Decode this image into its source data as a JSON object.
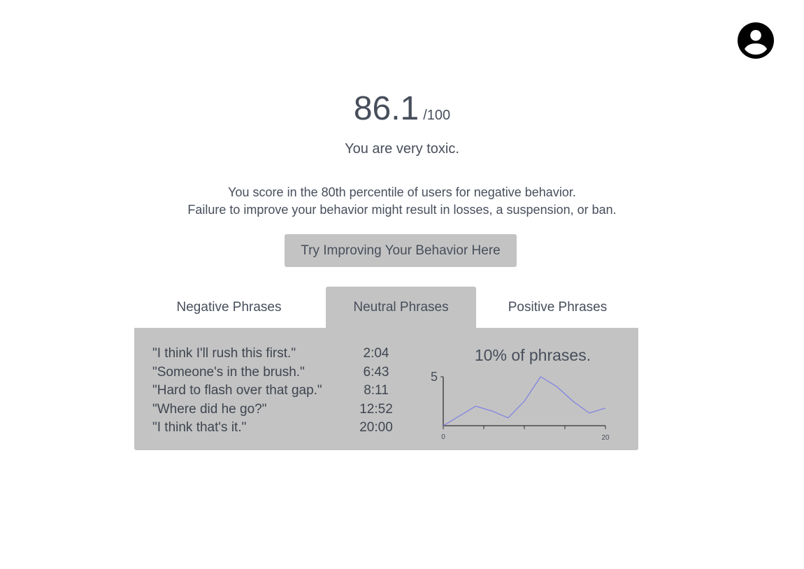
{
  "header": {
    "account_icon": "account-circle-icon"
  },
  "score": {
    "value": "86.1",
    "max": "/100",
    "verdict": "You are very toxic."
  },
  "description": {
    "line1": "You score in the 80th percentile of users for negative behavior.",
    "line2": "Failure to improve your behavior might result in losses, a suspension, or ban."
  },
  "cta": {
    "label": "Try Improving Your Behavior Here"
  },
  "tabs": [
    {
      "label": "Negative Phrases",
      "active": false
    },
    {
      "label": "Neutral Phrases",
      "active": true
    },
    {
      "label": "Positive Phrases",
      "active": false
    }
  ],
  "phrases": [
    {
      "text": "\"I think I'll rush this first.\"",
      "time": "2:04"
    },
    {
      "text": "\"Someone's in the brush.\"",
      "time": "6:43"
    },
    {
      "text": "\"Hard to flash over that gap.\"",
      "time": "8:11"
    },
    {
      "text": "\"Where did he go?\"",
      "time": "12:52"
    },
    {
      "text": "\"I think that's it.\"",
      "time": "20:00"
    }
  ],
  "chart_data": {
    "type": "line",
    "title": "10% of phrases.",
    "x": [
      0,
      2,
      4,
      6,
      8,
      10,
      12,
      14,
      16,
      18,
      20
    ],
    "series": [
      {
        "values": [
          0,
          1,
          2,
          1.5,
          0.8,
          2.5,
          5,
          4,
          2.5,
          1.3,
          1.8
        ]
      }
    ],
    "xlim": [
      0,
      20
    ],
    "ylim": [
      0,
      5
    ],
    "x_tick_labels": [
      "0",
      "20"
    ],
    "y_tick_labels": [
      "5"
    ],
    "line_color": "#7f7fe6",
    "grid": false
  }
}
